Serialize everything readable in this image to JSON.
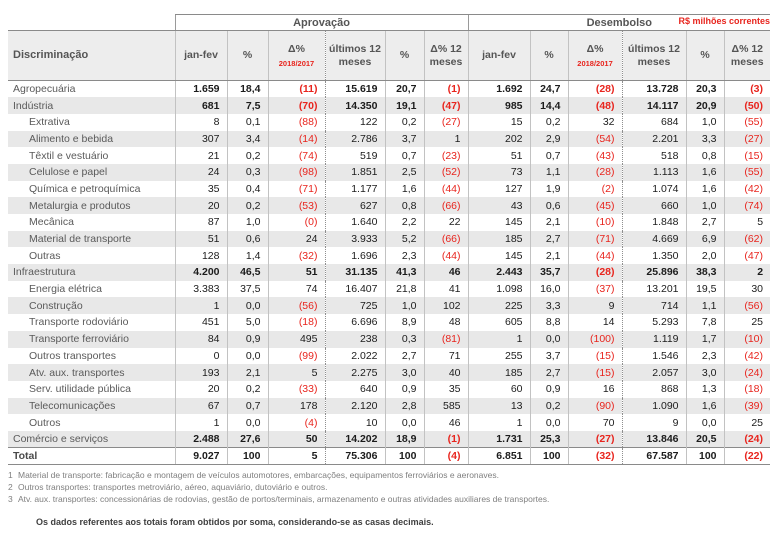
{
  "meta": {
    "currency_note": "R$ milhões correntes"
  },
  "table": {
    "groups": [
      "Aprovação",
      "Desembolso"
    ],
    "columns": {
      "discriminacao": "Discriminação",
      "janfev": "jan-fev",
      "pct": "%",
      "delta": "Δ%",
      "delta_sub": "2018/2017",
      "last12": "últimos 12 meses",
      "delta12": "Δ% 12 meses"
    },
    "rows": [
      {
        "label": "Agropecuária",
        "indent": false,
        "bold": true,
        "total": false,
        "values": [
          "1.659",
          "18,4",
          "(11)",
          "15.619",
          "20,7",
          "(1)",
          "1.692",
          "24,7",
          "(28)",
          "13.728",
          "20,3",
          "(3)"
        ]
      },
      {
        "label": "Indústria",
        "indent": false,
        "bold": true,
        "total": false,
        "values": [
          "681",
          "7,5",
          "(70)",
          "14.350",
          "19,1",
          "(47)",
          "985",
          "14,4",
          "(48)",
          "14.117",
          "20,9",
          "(50)"
        ]
      },
      {
        "label": "Extrativa",
        "indent": true,
        "bold": false,
        "total": false,
        "values": [
          "8",
          "0,1",
          "(88)",
          "122",
          "0,2",
          "(27)",
          "15",
          "0,2",
          "32",
          "684",
          "1,0",
          "(55)"
        ]
      },
      {
        "label": "Alimento e bebida",
        "indent": true,
        "bold": false,
        "total": false,
        "values": [
          "307",
          "3,4",
          "(14)",
          "2.786",
          "3,7",
          "1",
          "202",
          "2,9",
          "(54)",
          "2.201",
          "3,3",
          "(27)"
        ]
      },
      {
        "label": "Têxtil e vestuário",
        "indent": true,
        "bold": false,
        "total": false,
        "values": [
          "21",
          "0,2",
          "(74)",
          "519",
          "0,7",
          "(23)",
          "51",
          "0,7",
          "(43)",
          "518",
          "0,8",
          "(15)"
        ]
      },
      {
        "label": "Celulose e papel",
        "indent": true,
        "bold": false,
        "total": false,
        "values": [
          "24",
          "0,3",
          "(98)",
          "1.851",
          "2,5",
          "(52)",
          "73",
          "1,1",
          "(28)",
          "1.113",
          "1,6",
          "(55)"
        ]
      },
      {
        "label": "Química e petroquímica",
        "indent": true,
        "bold": false,
        "total": false,
        "values": [
          "35",
          "0,4",
          "(71)",
          "1.177",
          "1,6",
          "(44)",
          "127",
          "1,9",
          "(2)",
          "1.074",
          "1,6",
          "(42)"
        ]
      },
      {
        "label": "Metalurgia e produtos",
        "indent": true,
        "bold": false,
        "total": false,
        "values": [
          "20",
          "0,2",
          "(53)",
          "627",
          "0,8",
          "(66)",
          "43",
          "0,6",
          "(45)",
          "660",
          "1,0",
          "(74)"
        ]
      },
      {
        "label": "Mecânica",
        "indent": true,
        "bold": false,
        "total": false,
        "values": [
          "87",
          "1,0",
          "(0)",
          "1.640",
          "2,2",
          "22",
          "145",
          "2,1",
          "(10)",
          "1.848",
          "2,7",
          "5"
        ]
      },
      {
        "label": "Material de transporte",
        "indent": true,
        "bold": false,
        "total": false,
        "values": [
          "51",
          "0,6",
          "24",
          "3.933",
          "5,2",
          "(66)",
          "185",
          "2,7",
          "(71)",
          "4.669",
          "6,9",
          "(62)"
        ]
      },
      {
        "label": "Outras",
        "indent": true,
        "bold": false,
        "total": false,
        "values": [
          "128",
          "1,4",
          "(32)",
          "1.696",
          "2,3",
          "(44)",
          "145",
          "2,1",
          "(44)",
          "1.350",
          "2,0",
          "(47)"
        ]
      },
      {
        "label": "Infraestrutura",
        "indent": false,
        "bold": true,
        "total": false,
        "values": [
          "4.200",
          "46,5",
          "51",
          "31.135",
          "41,3",
          "46",
          "2.443",
          "35,7",
          "(28)",
          "25.896",
          "38,3",
          "2"
        ]
      },
      {
        "label": "Energia elétrica",
        "indent": true,
        "bold": false,
        "total": false,
        "values": [
          "3.383",
          "37,5",
          "74",
          "16.407",
          "21,8",
          "41",
          "1.098",
          "16,0",
          "(37)",
          "13.201",
          "19,5",
          "30"
        ]
      },
      {
        "label": "Construção",
        "indent": true,
        "bold": false,
        "total": false,
        "values": [
          "1",
          "0,0",
          "(56)",
          "725",
          "1,0",
          "102",
          "225",
          "3,3",
          "9",
          "714",
          "1,1",
          "(56)"
        ]
      },
      {
        "label": "Transporte rodoviário",
        "indent": true,
        "bold": false,
        "total": false,
        "values": [
          "451",
          "5,0",
          "(18)",
          "6.696",
          "8,9",
          "48",
          "605",
          "8,8",
          "14",
          "5.293",
          "7,8",
          "25"
        ]
      },
      {
        "label": "Transporte ferroviário",
        "indent": true,
        "bold": false,
        "total": false,
        "values": [
          "84",
          "0,9",
          "495",
          "238",
          "0,3",
          "(81)",
          "1",
          "0,0",
          "(100)",
          "1.119",
          "1,7",
          "(10)"
        ]
      },
      {
        "label": "Outros transportes",
        "indent": true,
        "bold": false,
        "total": false,
        "values": [
          "0",
          "0,0",
          "(99)",
          "2.022",
          "2,7",
          "71",
          "255",
          "3,7",
          "(15)",
          "1.546",
          "2,3",
          "(42)"
        ]
      },
      {
        "label": "Atv. aux. transportes",
        "indent": true,
        "bold": false,
        "total": false,
        "values": [
          "193",
          "2,1",
          "5",
          "2.275",
          "3,0",
          "40",
          "185",
          "2,7",
          "(15)",
          "2.057",
          "3,0",
          "(24)"
        ]
      },
      {
        "label": "Serv. utilidade pública",
        "indent": true,
        "bold": false,
        "total": false,
        "values": [
          "20",
          "0,2",
          "(33)",
          "640",
          "0,9",
          "35",
          "60",
          "0,9",
          "16",
          "868",
          "1,3",
          "(18)"
        ]
      },
      {
        "label": "Telecomunicações",
        "indent": true,
        "bold": false,
        "total": false,
        "values": [
          "67",
          "0,7",
          "178",
          "2.120",
          "2,8",
          "585",
          "13",
          "0,2",
          "(90)",
          "1.090",
          "1,6",
          "(39)"
        ]
      },
      {
        "label": "Outros",
        "indent": true,
        "bold": false,
        "total": false,
        "values": [
          "1",
          "0,0",
          "(4)",
          "10",
          "0,0",
          "46",
          "1",
          "0,0",
          "70",
          "9",
          "0,0",
          "25"
        ]
      },
      {
        "label": "Comércio e serviços",
        "indent": false,
        "bold": true,
        "total": false,
        "values": [
          "2.488",
          "27,6",
          "50",
          "14.202",
          "18,9",
          "(1)",
          "1.731",
          "25,3",
          "(27)",
          "13.846",
          "20,5",
          "(24)"
        ]
      },
      {
        "label": "Total",
        "indent": false,
        "bold": true,
        "total": true,
        "values": [
          "9.027",
          "100",
          "5",
          "75.306",
          "100",
          "(4)",
          "6.851",
          "100",
          "(32)",
          "67.587",
          "100",
          "(22)"
        ]
      }
    ]
  },
  "footnotes": [
    {
      "num": "1",
      "text": "Material de transporte: fabricação e montagem de veículos automotores, embarcações, equipamentos ferroviários e aeronaves."
    },
    {
      "num": "2",
      "text": "Outros transportes: transportes metroviário, aéreo, aquaviário, dutoviário e outros."
    },
    {
      "num": "3",
      "text": "Atv. aux. transportes: concessionárias de rodovias, gestão de portos/terminais, armazenamento e outras atividades auxiliares de transportes."
    }
  ],
  "bottom_note": "Os dados referentes aos totais foram obtidos por soma, considerando-se as casas decimais.",
  "colors": {
    "accent_red": "#e8251e",
    "stripe_gray": "#e8e8e8",
    "header_gray": "#ededed",
    "rule_gray": "#8a8a8a"
  }
}
